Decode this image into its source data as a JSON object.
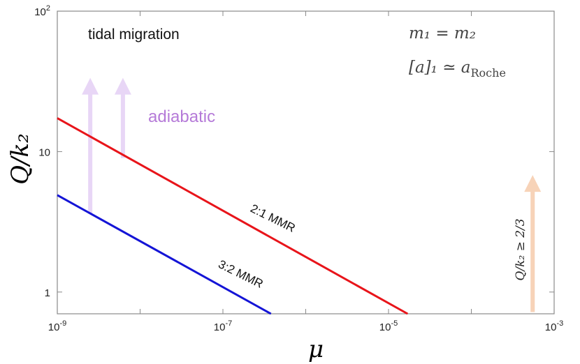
{
  "chart_data": {
    "type": "line",
    "x_scale": "log",
    "y_scale": "log",
    "xlim": [
      1e-09,
      0.001
    ],
    "ylim": [
      0.7,
      100
    ],
    "xlabel": "μ",
    "ylabel": "Q/k₂",
    "x_ticks": [
      {
        "value": 1e-09,
        "base": "10",
        "exp": "-9"
      },
      {
        "value": 1e-07,
        "base": "10",
        "exp": "-7"
      },
      {
        "value": 1e-05,
        "base": "10",
        "exp": "-5"
      },
      {
        "value": 0.001,
        "base": "10",
        "exp": "-3"
      }
    ],
    "y_ticks": [
      {
        "value": 1,
        "label": "1"
      },
      {
        "value": 10,
        "label": "10"
      },
      {
        "value": 100,
        "base": "10",
        "exp": "2"
      }
    ],
    "series": [
      {
        "name": "2:1 MMR",
        "color": "#e8141a",
        "points": [
          [
            1e-09,
            17.3
          ],
          [
            1.7e-05,
            0.7
          ]
        ]
      },
      {
        "name": "3:2 MMR",
        "color": "#1414d6",
        "points": [
          [
            1e-09,
            4.9
          ],
          [
            3.8e-07,
            0.7
          ]
        ]
      }
    ],
    "annotations": {
      "region_label": "tidal migration",
      "adiabatic_label": "adiabatic",
      "condition_line1": "m₁ = m₂",
      "condition_line2": "[a]₁ ≃ a",
      "condition_sub": "Roche",
      "constraint_label": "Q/k₂ ≥ 2/3"
    },
    "arrows": [
      {
        "name": "adiabatic-arrow-1",
        "x": 2.5e-09,
        "y_from": 3.6,
        "y_to": 32,
        "color": "#e8d6f6"
      },
      {
        "name": "adiabatic-arrow-2",
        "x": 6.2e-09,
        "y_from": 9.0,
        "y_to": 32,
        "color": "#e8d6f6"
      },
      {
        "name": "constraint-arrow",
        "x": 0.00055,
        "y_from": 0.72,
        "y_to": 6.5,
        "color": "#f7d3b8"
      }
    ],
    "colors": {
      "adiabatic": "#b57ad8",
      "axis": "#888888"
    }
  }
}
